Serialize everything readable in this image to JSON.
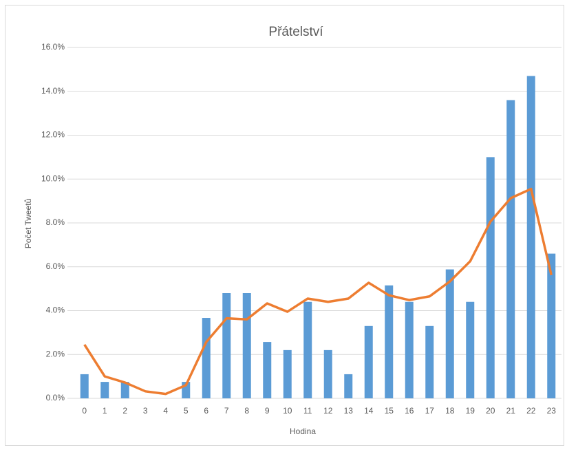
{
  "chart_data": {
    "type": "combo",
    "title": "Přátelství",
    "x_label": "Hodina",
    "y_label": "Počet Tweetů",
    "categories": [
      "0",
      "1",
      "2",
      "3",
      "4",
      "5",
      "6",
      "7",
      "8",
      "9",
      "10",
      "11",
      "12",
      "13",
      "14",
      "15",
      "16",
      "17",
      "18",
      "19",
      "20",
      "21",
      "22",
      "23"
    ],
    "series": [
      {
        "type": "bar",
        "color": "#5b9bd5",
        "values": [
          1.1,
          0.75,
          0.75,
          0,
          0,
          0.75,
          3.67,
          4.8,
          4.8,
          2.57,
          2.2,
          4.4,
          2.2,
          1.1,
          3.3,
          5.15,
          4.4,
          3.3,
          5.88,
          4.4,
          11.0,
          13.6,
          14.7,
          6.6
        ]
      },
      {
        "type": "line",
        "color": "#ed7d31",
        "values": [
          2.45,
          1.0,
          0.72,
          0.32,
          0.2,
          0.6,
          2.57,
          3.65,
          3.6,
          4.33,
          3.95,
          4.55,
          4.4,
          4.55,
          5.27,
          4.7,
          4.48,
          4.65,
          5.33,
          6.25,
          8.06,
          9.13,
          9.55,
          5.62
        ]
      }
    ],
    "ylim": [
      0,
      16
    ],
    "yticks": [
      {
        "value": 0,
        "label": "0.0%"
      },
      {
        "value": 2,
        "label": "2.0%"
      },
      {
        "value": 4,
        "label": "4.0%"
      },
      {
        "value": 6,
        "label": "6.0%"
      },
      {
        "value": 8,
        "label": "8.0%"
      },
      {
        "value": 10,
        "label": "10.0%"
      },
      {
        "value": 12,
        "label": "12.0%"
      },
      {
        "value": 14,
        "label": "14.0%"
      },
      {
        "value": 16,
        "label": "16.0%"
      }
    ],
    "grid": true
  }
}
